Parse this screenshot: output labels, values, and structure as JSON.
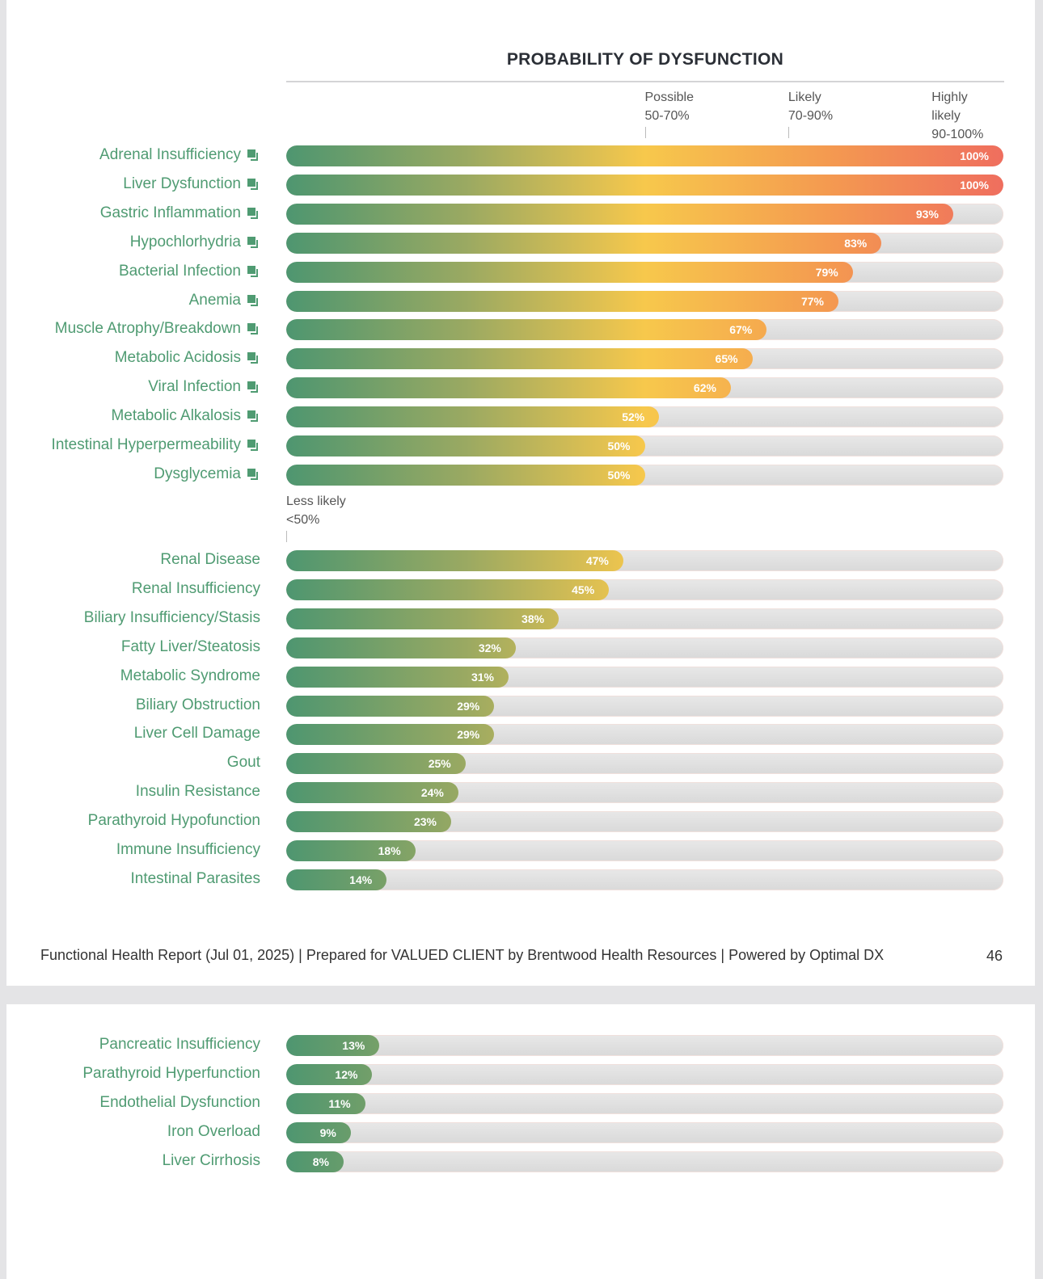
{
  "chart_data": {
    "type": "bar",
    "orientation": "horizontal",
    "title": "PROBABILITY OF DYSFUNCTION",
    "xlim": [
      0,
      100
    ],
    "zones": [
      {
        "label": "Possible",
        "range": "50-70%",
        "start": 50
      },
      {
        "label": "Likely",
        "range": "70-90%",
        "start": 70
      },
      {
        "label": "Highly likely",
        "range": "90-100%",
        "start": 90
      }
    ],
    "less_likely": {
      "label": "Less likely",
      "range": "<50%",
      "start": 0
    },
    "colors": {
      "low": "#4e9670",
      "mid": "#f7c84c",
      "high_mid": "#f49b50",
      "high": "#ef6e5e",
      "track": "#e0e0e0"
    },
    "group_high": [
      {
        "label": "Adrenal Insufficiency",
        "value": 100
      },
      {
        "label": "Liver Dysfunction",
        "value": 100
      },
      {
        "label": "Gastric Inflammation",
        "value": 93
      },
      {
        "label": "Hypochlorhydria",
        "value": 83
      },
      {
        "label": "Bacterial Infection",
        "value": 79
      },
      {
        "label": "Anemia",
        "value": 77
      },
      {
        "label": "Muscle Atrophy/Breakdown",
        "value": 67
      },
      {
        "label": "Metabolic Acidosis",
        "value": 65
      },
      {
        "label": "Viral Infection",
        "value": 62
      },
      {
        "label": "Metabolic Alkalosis",
        "value": 52
      },
      {
        "label": "Intestinal Hyperpermeability",
        "value": 50
      },
      {
        "label": "Dysglycemia",
        "value": 50
      }
    ],
    "group_low": [
      {
        "label": "Renal Disease",
        "value": 47
      },
      {
        "label": "Renal Insufficiency",
        "value": 45
      },
      {
        "label": "Biliary Insufficiency/Stasis",
        "value": 38
      },
      {
        "label": "Fatty Liver/Steatosis",
        "value": 32
      },
      {
        "label": "Metabolic Syndrome",
        "value": 31
      },
      {
        "label": "Biliary Obstruction",
        "value": 29
      },
      {
        "label": "Liver Cell Damage",
        "value": 29
      },
      {
        "label": "Gout",
        "value": 25
      },
      {
        "label": "Insulin Resistance",
        "value": 24
      },
      {
        "label": "Parathyroid Hypofunction",
        "value": 23
      },
      {
        "label": "Immune Insufficiency",
        "value": 18
      },
      {
        "label": "Intestinal Parasites",
        "value": 14
      }
    ],
    "group_page2": [
      {
        "label": "Pancreatic Insufficiency",
        "value": 13
      },
      {
        "label": "Parathyroid Hyperfunction",
        "value": 12
      },
      {
        "label": "Endothelial Dysfunction",
        "value": 11
      },
      {
        "label": "Iron Overload",
        "value": 9
      },
      {
        "label": "Liver Cirrhosis",
        "value": 8
      }
    ],
    "link_icon": "external-link-icon"
  },
  "footer": {
    "text": "Functional Health Report (Jul 01, 2025) | Prepared for VALUED CLIENT by Brentwood Health Resources | Powered by Optimal DX",
    "page_number": "46"
  }
}
